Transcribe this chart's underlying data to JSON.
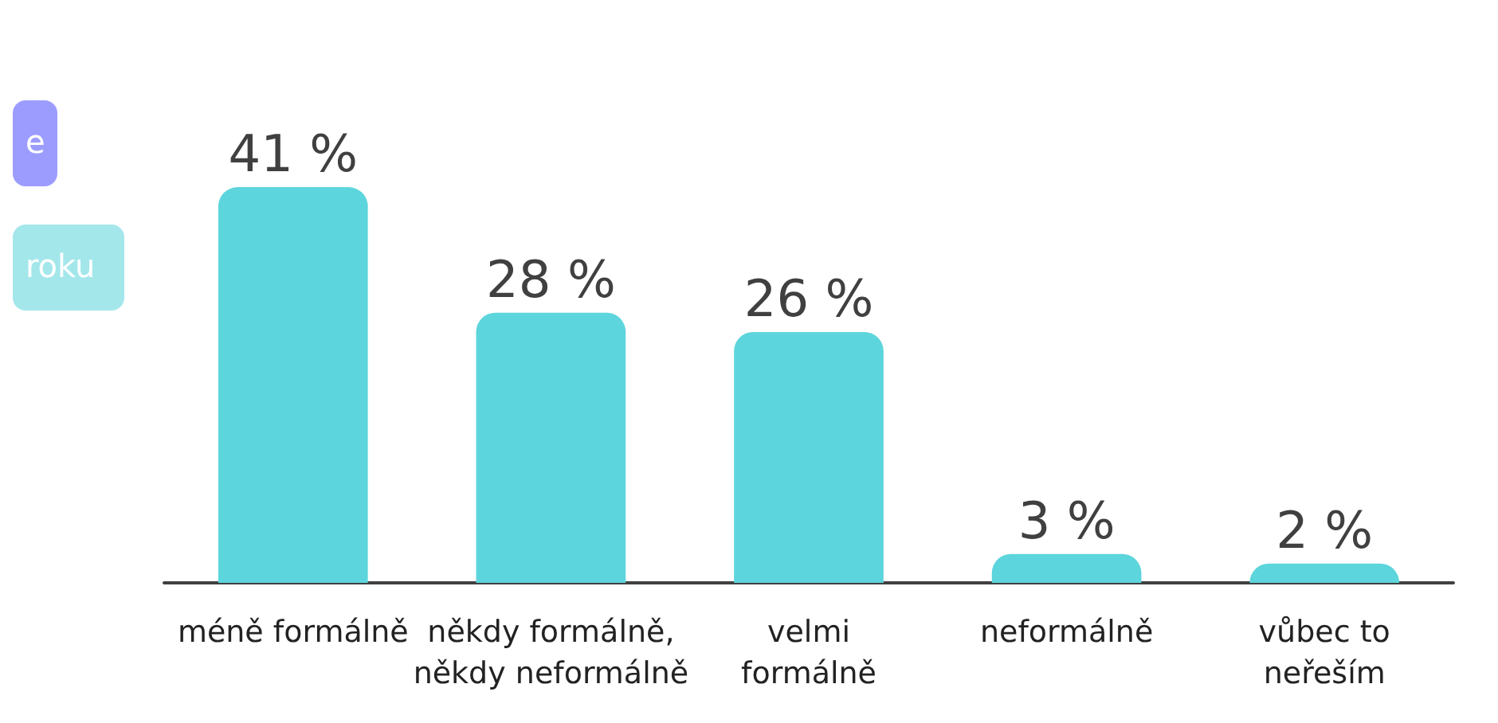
{
  "chart_data": {
    "type": "bar",
    "categories": [
      "méně formálně",
      "někdy formálně,\nněkdy neformálně",
      "velmi\nformálně",
      "neformálně",
      "vůbec to\nneřeším"
    ],
    "values": [
      41,
      28,
      26,
      3,
      2
    ],
    "value_labels": [
      "41 %",
      "28 %",
      "26 %",
      "3 %",
      "2 %"
    ],
    "color": "#5dd5dc",
    "annotations": [
      "e",
      "roku"
    ]
  }
}
